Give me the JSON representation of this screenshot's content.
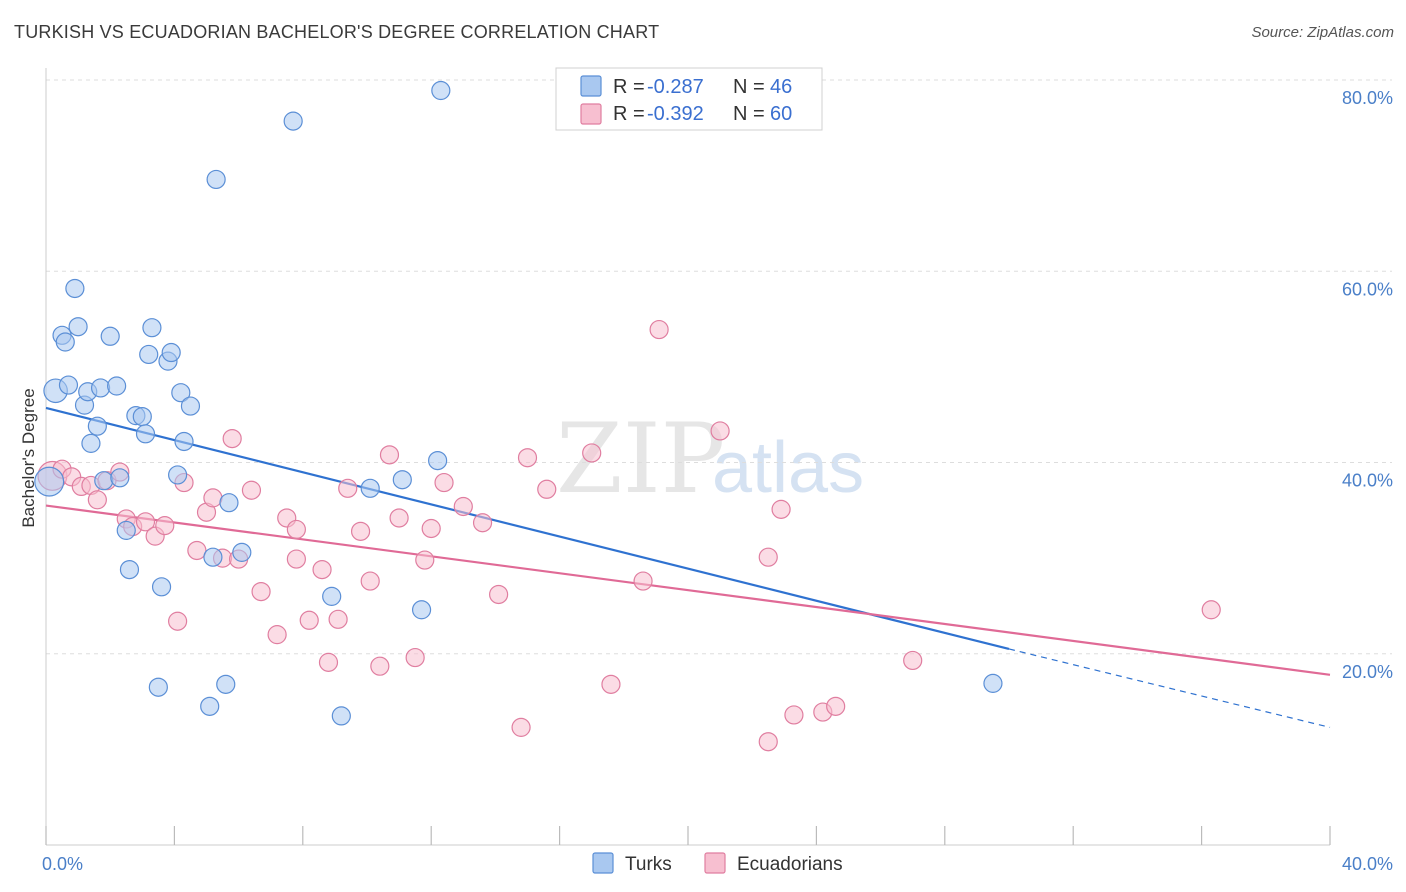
{
  "header": {
    "title": "TURKISH VS ECUADORIAN BACHELOR'S DEGREE CORRELATION CHART",
    "source": "Source: ZipAtlas.com"
  },
  "watermark": {
    "zip": "ZIP",
    "atlas": "atlas"
  },
  "colors": {
    "turks_fill": "#a9c8f0",
    "turks_stroke": "#5b8fd6",
    "turks_line": "#2f72d0",
    "ecuadorians_fill": "#f7bfd0",
    "ecuadorians_stroke": "#e07ea0",
    "ecuadorians_line": "#e06a96",
    "grid": "#dddddd"
  },
  "legend": {
    "turks": {
      "r_label": "R = ",
      "r_value": "-0.287",
      "n_label": "N = ",
      "n_value": "46"
    },
    "ecuadorians": {
      "r_label": "R = ",
      "r_value": "-0.392",
      "n_label": "N = ",
      "n_value": "60"
    }
  },
  "chart_data": {
    "type": "scatter",
    "title": "TURKISH VS ECUADORIAN BACHELOR'S DEGREE CORRELATION CHART",
    "xlabel": "",
    "ylabel": "Bachelor's Degree",
    "xlim": [
      0,
      40
    ],
    "ylim": [
      0,
      82
    ],
    "x_tick_labels": [
      {
        "value": 0,
        "label": "0.0%"
      },
      {
        "value": 40,
        "label": "40.0%"
      }
    ],
    "y_tick_labels": [
      {
        "value": 20,
        "label": "20.0%"
      },
      {
        "value": 40,
        "label": "40.0%"
      },
      {
        "value": 60,
        "label": "60.0%"
      },
      {
        "value": 80,
        "label": "80.0%"
      }
    ],
    "legend_position": "top-center",
    "series": [
      {
        "name": "Turks",
        "r": -0.287,
        "n": 46,
        "trend": {
          "x0": 0,
          "y0": 45.7,
          "x1": 30,
          "y1": 20.5,
          "dashed_to": 40,
          "dashed_y": 12.3
        },
        "points": [
          [
            0.1,
            38.0,
            1.6
          ],
          [
            0.3,
            47.5,
            1.3
          ],
          [
            0.5,
            53.3,
            1.0
          ],
          [
            0.6,
            52.6,
            1.0
          ],
          [
            0.7,
            48.1,
            1.0
          ],
          [
            0.9,
            58.2,
            1.0
          ],
          [
            1.0,
            54.2,
            1.0
          ],
          [
            1.2,
            46.0,
            1.0
          ],
          [
            1.3,
            47.4,
            1.0
          ],
          [
            1.4,
            42.0,
            1.0
          ],
          [
            1.6,
            43.8,
            1.0
          ],
          [
            1.7,
            47.8,
            1.0
          ],
          [
            1.8,
            38.1,
            1.0
          ],
          [
            2.0,
            53.2,
            1.0
          ],
          [
            2.2,
            48.0,
            1.0
          ],
          [
            2.3,
            38.4,
            1.0
          ],
          [
            2.5,
            32.9,
            1.0
          ],
          [
            2.6,
            28.8,
            1.0
          ],
          [
            2.8,
            44.9,
            1.0
          ],
          [
            3.0,
            44.8,
            1.0
          ],
          [
            3.1,
            43.0,
            1.0
          ],
          [
            3.2,
            51.3,
            1.0
          ],
          [
            3.3,
            54.1,
            1.0
          ],
          [
            3.5,
            16.5,
            1.0
          ],
          [
            3.6,
            27.0,
            1.0
          ],
          [
            3.8,
            50.6,
            1.0
          ],
          [
            3.9,
            51.5,
            1.0
          ],
          [
            4.1,
            38.7,
            1.0
          ],
          [
            4.2,
            47.3,
            1.0
          ],
          [
            4.3,
            42.2,
            1.0
          ],
          [
            4.5,
            45.9,
            1.0
          ],
          [
            5.1,
            14.5,
            1.0
          ],
          [
            5.2,
            30.1,
            1.0
          ],
          [
            5.3,
            69.6,
            1.0
          ],
          [
            5.6,
            16.8,
            1.0
          ],
          [
            5.7,
            35.8,
            1.0
          ],
          [
            6.1,
            30.6,
            1.0
          ],
          [
            7.7,
            75.7,
            1.0
          ],
          [
            8.9,
            26.0,
            1.0
          ],
          [
            9.2,
            13.5,
            1.0
          ],
          [
            10.1,
            37.3,
            1.0
          ],
          [
            11.1,
            38.2,
            1.0
          ],
          [
            11.7,
            24.6,
            1.0
          ],
          [
            12.2,
            40.2,
            1.0
          ],
          [
            12.3,
            78.9,
            1.0
          ],
          [
            29.5,
            16.9,
            1.0
          ]
        ]
      },
      {
        "name": "Ecuadorians",
        "r": -0.392,
        "n": 60,
        "trend": {
          "x0": 0,
          "y0": 35.5,
          "x1": 40,
          "y1": 17.8
        },
        "points": [
          [
            0.2,
            38.6,
            1.6
          ],
          [
            0.5,
            39.3,
            1.0
          ],
          [
            0.8,
            38.5,
            1.0
          ],
          [
            1.1,
            37.5,
            1.0
          ],
          [
            1.4,
            37.6,
            1.0
          ],
          [
            1.6,
            36.1,
            1.0
          ],
          [
            1.9,
            38.1,
            1.0
          ],
          [
            2.3,
            39.0,
            1.0
          ],
          [
            2.5,
            34.1,
            1.0
          ],
          [
            2.7,
            33.3,
            1.0
          ],
          [
            3.1,
            33.8,
            1.0
          ],
          [
            3.4,
            32.3,
            1.0
          ],
          [
            3.7,
            33.4,
            1.0
          ],
          [
            4.1,
            23.4,
            1.0
          ],
          [
            4.3,
            37.9,
            1.0
          ],
          [
            4.7,
            30.8,
            1.0
          ],
          [
            5.0,
            34.8,
            1.0
          ],
          [
            5.2,
            36.3,
            1.0
          ],
          [
            5.5,
            30.0,
            1.0
          ],
          [
            5.8,
            42.5,
            1.0
          ],
          [
            6.0,
            29.9,
            1.0
          ],
          [
            6.4,
            37.1,
            1.0
          ],
          [
            6.7,
            26.5,
            1.0
          ],
          [
            7.2,
            22.0,
            1.0
          ],
          [
            7.5,
            34.2,
            1.0
          ],
          [
            7.8,
            33.0,
            1.0
          ],
          [
            7.8,
            29.9,
            1.0
          ],
          [
            8.2,
            23.5,
            1.0
          ],
          [
            8.6,
            28.8,
            1.0
          ],
          [
            8.8,
            19.1,
            1.0
          ],
          [
            9.1,
            23.6,
            1.0
          ],
          [
            9.4,
            37.3,
            1.0
          ],
          [
            9.8,
            32.8,
            1.0
          ],
          [
            10.1,
            27.6,
            1.0
          ],
          [
            10.4,
            18.7,
            1.0
          ],
          [
            10.7,
            40.8,
            1.0
          ],
          [
            11.0,
            34.2,
            1.0
          ],
          [
            11.5,
            19.6,
            1.0
          ],
          [
            11.8,
            29.8,
            1.0
          ],
          [
            12.0,
            33.1,
            1.0
          ],
          [
            12.4,
            37.9,
            1.0
          ],
          [
            13.0,
            35.4,
            1.0
          ],
          [
            13.6,
            33.7,
            1.0
          ],
          [
            14.1,
            26.2,
            1.0
          ],
          [
            14.8,
            12.3,
            1.0
          ],
          [
            15.0,
            40.5,
            1.0
          ],
          [
            15.6,
            37.2,
            1.0
          ],
          [
            17.0,
            41.0,
            1.0
          ],
          [
            17.6,
            16.8,
            1.0
          ],
          [
            18.6,
            27.6,
            1.0
          ],
          [
            19.1,
            53.9,
            1.0
          ],
          [
            21.0,
            43.3,
            1.0
          ],
          [
            22.5,
            10.8,
            1.0
          ],
          [
            22.5,
            30.1,
            1.0
          ],
          [
            22.9,
            35.1,
            1.0
          ],
          [
            23.3,
            13.6,
            1.0
          ],
          [
            24.2,
            13.9,
            1.0
          ],
          [
            24.6,
            14.5,
            1.0
          ],
          [
            27.0,
            19.3,
            1.0
          ],
          [
            36.3,
            24.6,
            1.0
          ]
        ]
      }
    ],
    "bottom_legend": [
      "Turks",
      "Ecuadorians"
    ]
  }
}
